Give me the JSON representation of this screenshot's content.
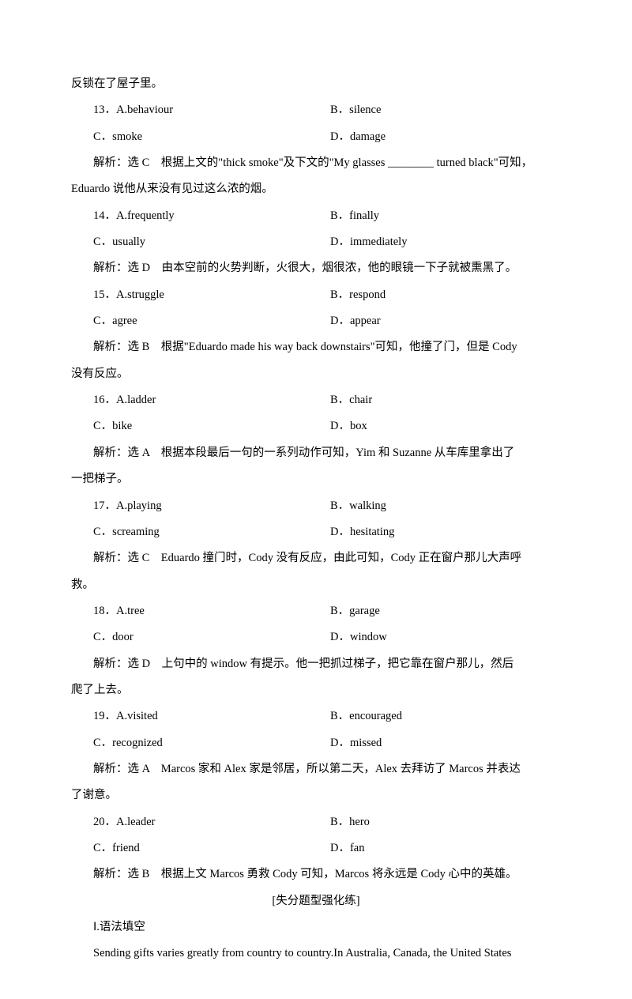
{
  "top_line": "反锁在了屋子里。",
  "items": [
    {
      "num": "13",
      "a": "A.behaviour",
      "b": "B．silence",
      "c": "C．smoke",
      "d": "D．damage",
      "exp_lines": [
        "解析：选 C　根据上文的\"thick smoke\"及下文的\"My glasses ________ turned black\"可知，"
      ],
      "exp_cont": "Eduardo 说他从来没有见过这么浓的烟。"
    },
    {
      "num": "14",
      "a": "A.frequently",
      "b": "B．finally",
      "c": "C．usually",
      "d": "D．immediately",
      "exp_lines": [
        "解析：选 D　由本空前的火势判断，火很大，烟很浓，他的眼镜一下子就被熏黑了。"
      ]
    },
    {
      "num": "15",
      "a": "A.struggle",
      "b": "B．respond",
      "c": "C．agree",
      "d": "D．appear",
      "exp_lines": [
        "解析：选 B　根据\"Eduardo made his way back downstairs\"可知，他撞了门，但是 Cody"
      ],
      "exp_cont": "没有反应。"
    },
    {
      "num": "16",
      "a": "A.ladder",
      "b": "B．chair",
      "c": "C．bike",
      "d": "D．box",
      "exp_lines": [
        "解析：选 A　根据本段最后一句的一系列动作可知，Yim 和 Suzanne 从车库里拿出了"
      ],
      "exp_cont": "一把梯子。"
    },
    {
      "num": "17",
      "a": "A.playing",
      "b": "B．walking",
      "c": "C．screaming",
      "d": "D．hesitating",
      "exp_lines": [
        "解析：选 C　Eduardo 撞门时，Cody 没有反应，由此可知，Cody 正在窗户那儿大声呼"
      ],
      "exp_cont": "救。"
    },
    {
      "num": "18",
      "a": "A.tree",
      "b": "B．garage",
      "c": "C．door",
      "d": "D．window",
      "exp_lines": [
        "解析：选 D　上句中的 window 有提示。他一把抓过梯子，把它靠在窗户那儿，然后"
      ],
      "exp_cont": "爬了上去。"
    },
    {
      "num": "19",
      "a": "A.visited",
      "b": "B．encouraged",
      "c": "C．recognized",
      "d": "D．missed",
      "exp_lines": [
        "解析：选 A　Marcos 家和 Alex 家是邻居，所以第二天，Alex 去拜访了 Marcos 并表达"
      ],
      "exp_cont": "了谢意。"
    },
    {
      "num": "20",
      "a": "A.leader",
      "b": "B．hero",
      "c": "C．friend",
      "d": "D．fan",
      "exp_lines": [
        "解析：选 B　根据上文 Marcos 勇救 Cody 可知，Marcos 将永远是 Cody 心中的英雄。"
      ]
    }
  ],
  "section_title": "[失分题型强化练]",
  "grammar_heading": "Ⅰ.语法填空",
  "bottom_line": "Sending gifts varies greatly from country to country.In Australia, Canada, the United States"
}
